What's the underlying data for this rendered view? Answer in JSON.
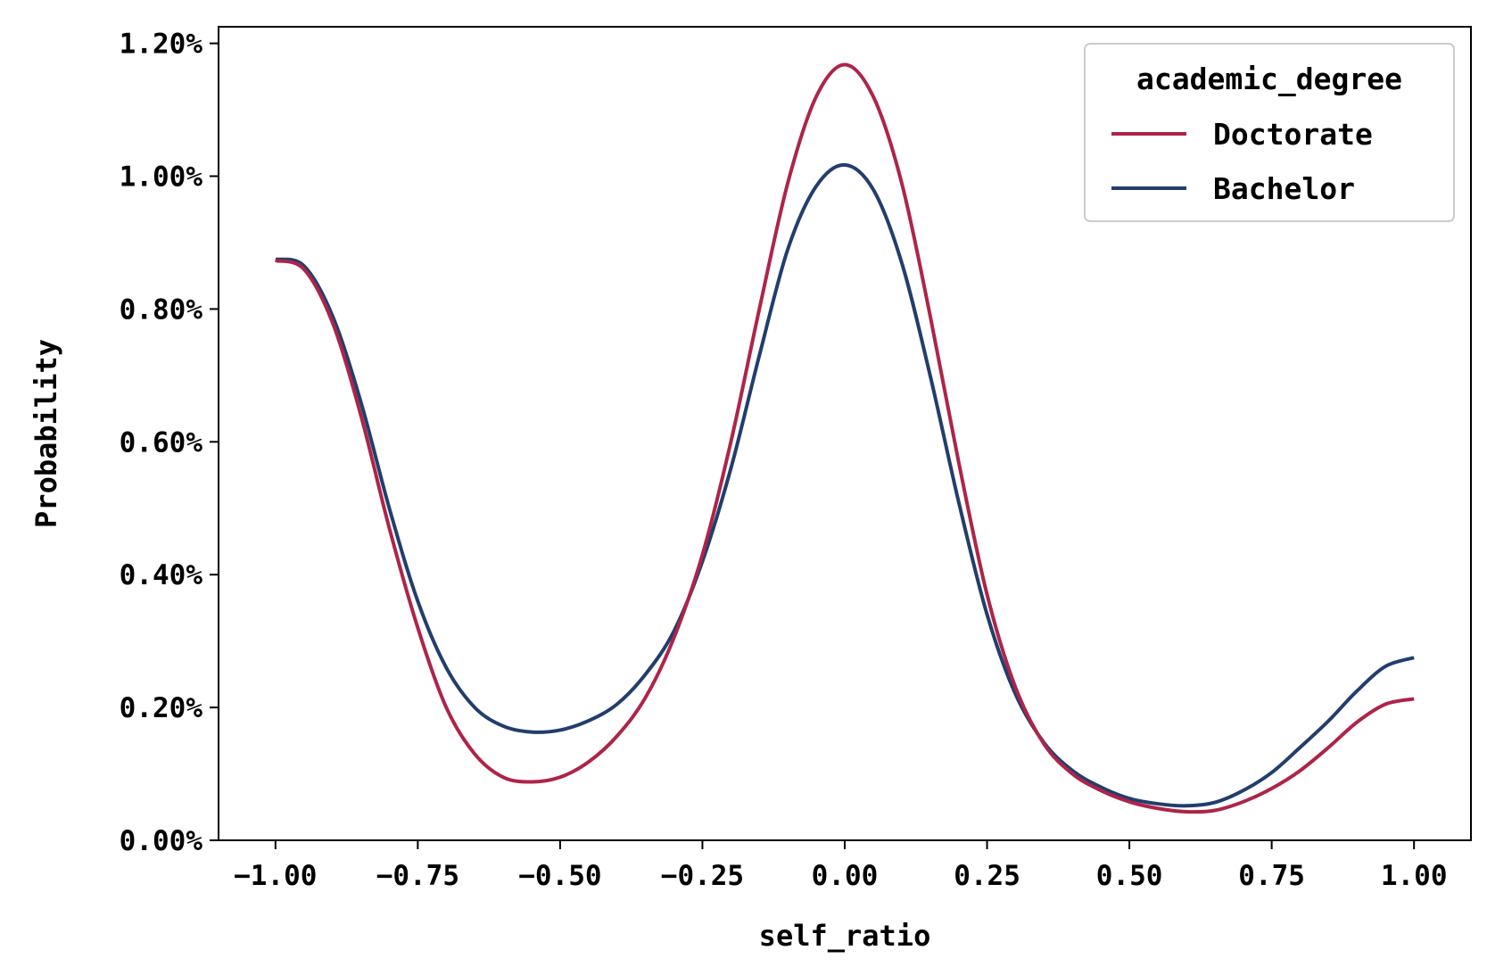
{
  "chart_data": {
    "type": "line",
    "title": "",
    "xlabel": "self_ratio",
    "ylabel": "Probability",
    "xlim": [
      -1.1,
      1.1
    ],
    "ylim": [
      0.0,
      1.225
    ],
    "x_ticks": [
      -1.0,
      -0.75,
      -0.5,
      -0.25,
      0.0,
      0.25,
      0.5,
      0.75,
      1.0
    ],
    "x_tick_labels": [
      "−1.00",
      "−0.75",
      "−0.50",
      "−0.25",
      "0.00",
      "0.25",
      "0.50",
      "0.75",
      "1.00"
    ],
    "y_ticks": [
      0.0,
      0.2,
      0.4,
      0.6,
      0.8,
      1.0,
      1.2
    ],
    "y_tick_labels": [
      "0.00%",
      "0.20%",
      "0.40%",
      "0.60%",
      "0.80%",
      "1.00%",
      "1.20%"
    ],
    "grid": false,
    "legend": {
      "title": "academic_degree",
      "placement": "top-right"
    },
    "series": [
      {
        "name": "Doctorate",
        "color": "#ae2449",
        "x": [
          -1.0,
          -0.95,
          -0.9,
          -0.85,
          -0.8,
          -0.75,
          -0.7,
          -0.65,
          -0.6,
          -0.55,
          -0.5,
          -0.45,
          -0.4,
          -0.35,
          -0.3,
          -0.25,
          -0.2,
          -0.15,
          -0.1,
          -0.05,
          0.0,
          0.05,
          0.1,
          0.15,
          0.2,
          0.25,
          0.3,
          0.35,
          0.4,
          0.45,
          0.5,
          0.55,
          0.6,
          0.65,
          0.7,
          0.75,
          0.8,
          0.85,
          0.9,
          0.95,
          1.0
        ],
        "y": [
          0.873,
          0.86,
          0.78,
          0.64,
          0.47,
          0.32,
          0.2,
          0.13,
          0.095,
          0.088,
          0.095,
          0.118,
          0.157,
          0.215,
          0.305,
          0.43,
          0.6,
          0.8,
          0.99,
          1.12,
          1.168,
          1.12,
          0.99,
          0.79,
          0.57,
          0.37,
          0.23,
          0.145,
          0.1,
          0.075,
          0.058,
          0.048,
          0.043,
          0.045,
          0.058,
          0.078,
          0.105,
          0.14,
          0.178,
          0.205,
          0.213
        ]
      },
      {
        "name": "Bachelor",
        "color": "#213e6d",
        "x": [
          -1.0,
          -0.95,
          -0.9,
          -0.85,
          -0.8,
          -0.75,
          -0.7,
          -0.65,
          -0.6,
          -0.55,
          -0.5,
          -0.45,
          -0.4,
          -0.35,
          -0.3,
          -0.25,
          -0.2,
          -0.15,
          -0.1,
          -0.05,
          0.0,
          0.05,
          0.1,
          0.15,
          0.2,
          0.25,
          0.3,
          0.35,
          0.4,
          0.45,
          0.5,
          0.55,
          0.6,
          0.65,
          0.7,
          0.75,
          0.8,
          0.85,
          0.9,
          0.95,
          1.0
        ],
        "y": [
          0.875,
          0.865,
          0.79,
          0.66,
          0.5,
          0.36,
          0.26,
          0.2,
          0.172,
          0.163,
          0.166,
          0.18,
          0.205,
          0.25,
          0.315,
          0.42,
          0.56,
          0.73,
          0.89,
          0.985,
          1.017,
          0.98,
          0.87,
          0.7,
          0.51,
          0.34,
          0.22,
          0.147,
          0.105,
          0.08,
          0.063,
          0.055,
          0.052,
          0.057,
          0.075,
          0.102,
          0.14,
          0.18,
          0.225,
          0.262,
          0.275
        ]
      }
    ]
  }
}
